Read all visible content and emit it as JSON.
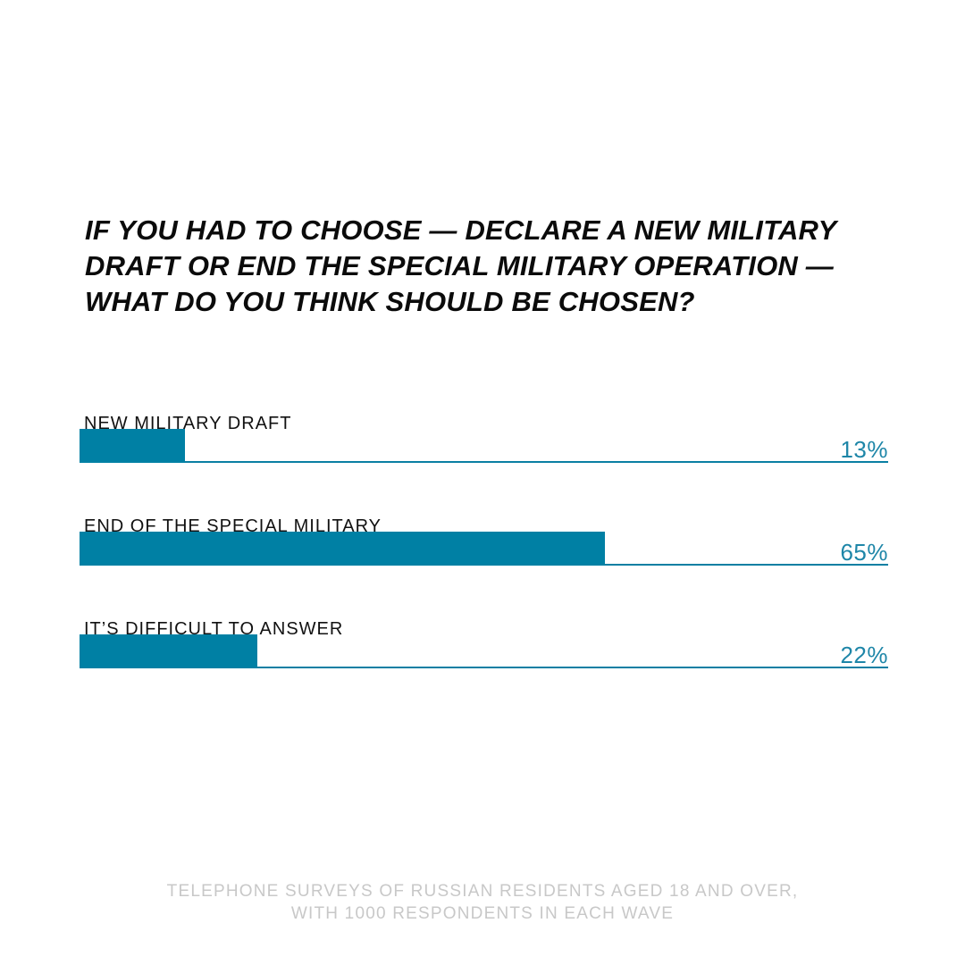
{
  "chart_data": {
    "type": "bar",
    "orientation": "horizontal",
    "title": "IF YOU HAD TO CHOOSE — DECLARE A NEW MILITARY DRAFT OR END THE SPECIAL MILITARY OPERATION — WHAT DO YOU THINK SHOULD BE CHOSEN?",
    "categories": [
      "NEW MILITARY DRAFT",
      "END OF THE SPECIAL MILITARY OPERATION",
      "IT’S DIFFICULT TO ANSWER"
    ],
    "values": [
      13,
      65,
      22
    ],
    "value_labels": [
      "13%",
      "65%",
      "22%"
    ],
    "xlim": [
      0,
      100
    ],
    "unit": "%",
    "grid": false,
    "legend": "none"
  },
  "footnote": {
    "line1": "TELEPHONE SURVEYS OF RUSSIAN RESIDENTS AGED 18 AND OVER,",
    "line2": "WITH 1000 RESPONDENTS IN EACH WAVE"
  },
  "colors": {
    "bar": "#0080a4",
    "track": "#0a7fa3",
    "value_text": "#1e86a8",
    "title_text": "#0b0b0b",
    "footnote_text": "#c8c8c8"
  }
}
